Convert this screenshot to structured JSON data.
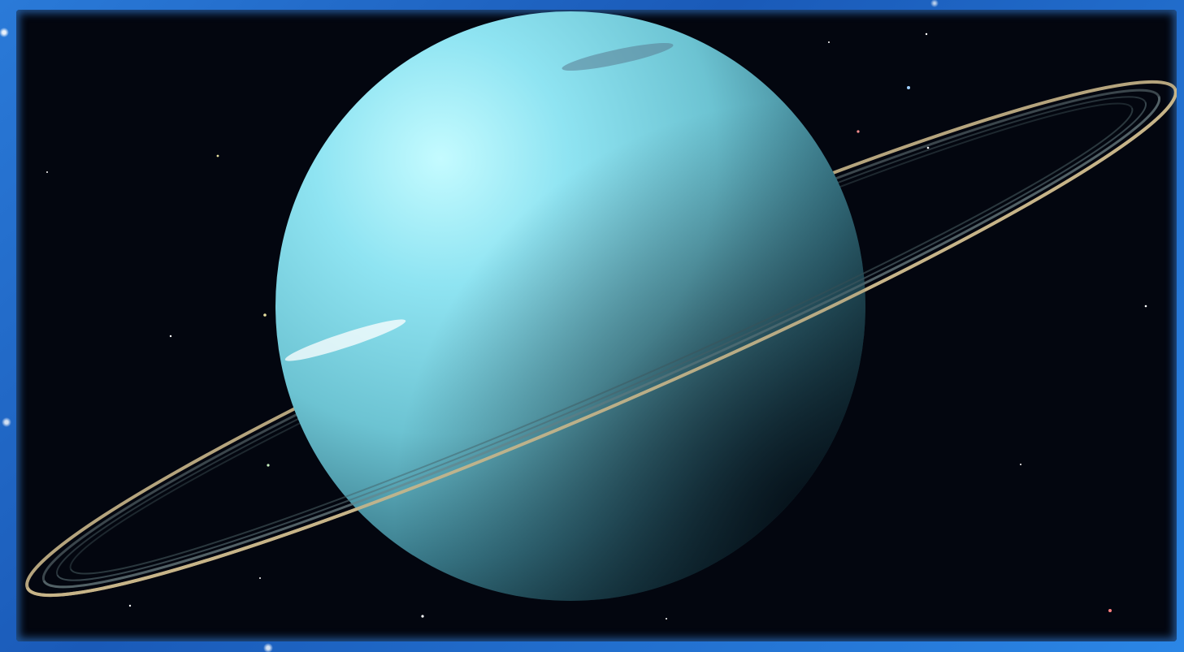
{
  "scene": {
    "subject": "uranus-icon",
    "colors": {
      "border": "#2a7ad8",
      "space": "#03060f",
      "planet_light": "#bff6ff",
      "planet_mid": "#7fd0df",
      "planet_dark": "#1f4f5c",
      "ring": "#c9b68a"
    }
  }
}
